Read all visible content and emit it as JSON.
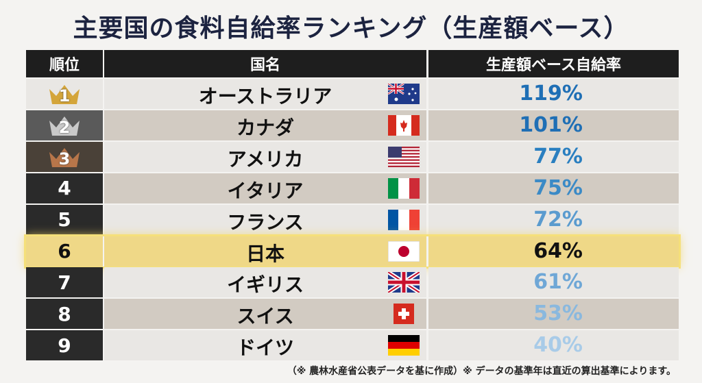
{
  "title": "主要国の食料自給率ランキング（生産額ベース）",
  "table": {
    "headers": [
      "順位",
      "国名",
      "生産額ベース自給率"
    ],
    "rows": [
      {
        "rank": 1,
        "country": "オーストラリア",
        "rate": "119%"
      },
      {
        "rank": 2,
        "country": "カナダ",
        "rate": "101%"
      },
      {
        "rank": 3,
        "country": "アメリカ",
        "rate": "77%"
      },
      {
        "rank": 4,
        "country": "イタリア",
        "rate": "75%"
      },
      {
        "rank": 5,
        "country": "フランス",
        "rate": "72%"
      },
      {
        "rank": 6,
        "country": "日本",
        "rate": "64%"
      },
      {
        "rank": 7,
        "country": "イギリス",
        "rate": "61%"
      },
      {
        "rank": 8,
        "country": "スイス",
        "rate": "53%"
      },
      {
        "rank": 9,
        "country": "ドイツ",
        "rate": "40%"
      }
    ]
  },
  "footnote": "（※ 農林水産省公表データを基に作成）※ データの基準年は直近の算出基準によります。"
}
